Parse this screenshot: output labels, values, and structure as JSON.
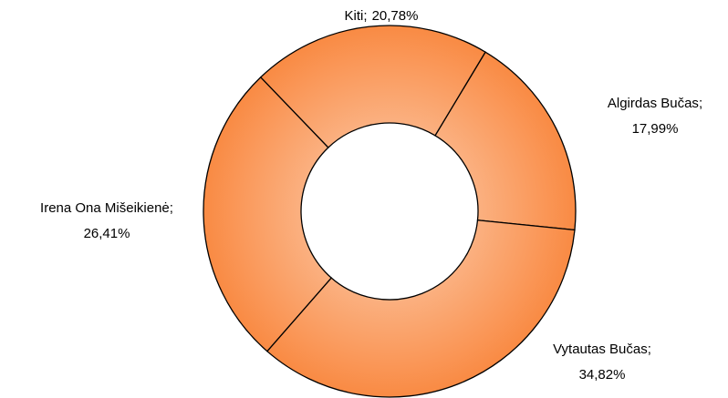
{
  "chart_data": {
    "type": "donut",
    "categories": [
      "Algirdas Bučas",
      "Vytautas Bučas",
      "Irena Ona Mišeikienė",
      "Kiti"
    ],
    "values": [
      17.99,
      34.82,
      26.41,
      20.78
    ],
    "value_labels": [
      "17,99%",
      "34,82%",
      "26,41%",
      "20,78%"
    ],
    "label_separator": ";",
    "color": "#fa9a5c"
  }
}
